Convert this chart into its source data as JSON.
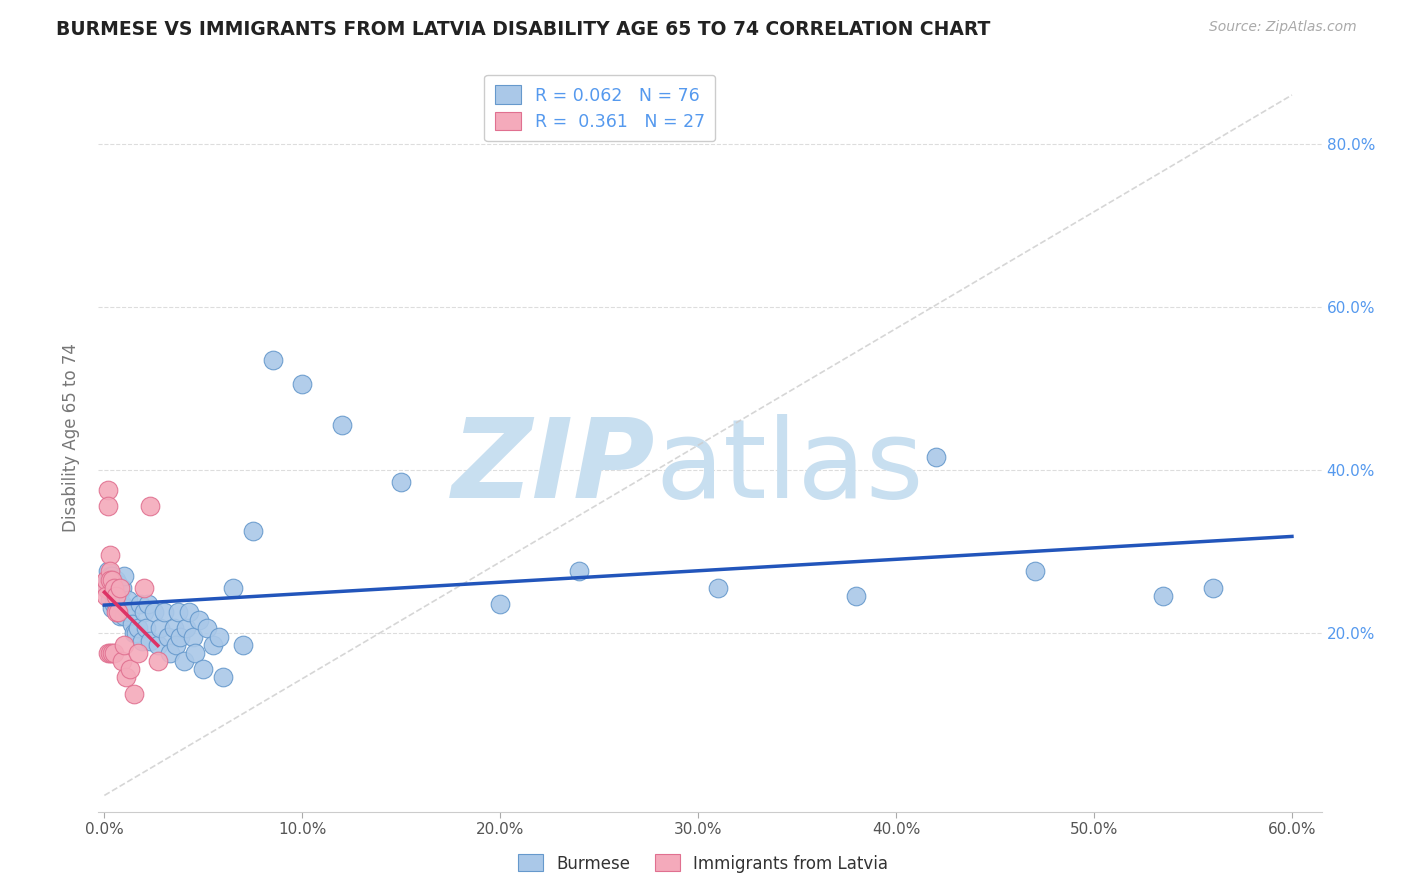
{
  "title": "BURMESE VS IMMIGRANTS FROM LATVIA DISABILITY AGE 65 TO 74 CORRELATION CHART",
  "source": "Source: ZipAtlas.com",
  "ylabel": "Disability Age 65 to 74",
  "legend_label1": "Burmese",
  "legend_label2": "Immigrants from Latvia",
  "R1": 0.062,
  "N1": 76,
  "R2": 0.361,
  "N2": 27,
  "xlim": [
    -0.003,
    0.615
  ],
  "ylim": [
    -0.02,
    0.9
  ],
  "xticks": [
    0.0,
    0.1,
    0.2,
    0.3,
    0.4,
    0.5,
    0.6
  ],
  "yticks": [
    0.2,
    0.4,
    0.6,
    0.8
  ],
  "color_blue_fill": "#aac8e8",
  "color_pink_fill": "#f4aabb",
  "color_blue_edge": "#6699cc",
  "color_pink_edge": "#e07090",
  "color_blue_line": "#2255bb",
  "color_pink_line": "#dd3366",
  "color_diag": "#cccccc",
  "color_grid": "#dddddd",
  "color_ytick_right": "#5599ee",
  "color_xtick": "#555555",
  "watermark_zip_color": "#c8dff0",
  "watermark_atlas_color": "#c8dff0",
  "background_color": "#ffffff",
  "blue_x": [
    0.001,
    0.002,
    0.002,
    0.003,
    0.003,
    0.003,
    0.003,
    0.004,
    0.004,
    0.004,
    0.005,
    0.005,
    0.005,
    0.005,
    0.006,
    0.006,
    0.006,
    0.006,
    0.007,
    0.007,
    0.007,
    0.008,
    0.008,
    0.009,
    0.009,
    0.01,
    0.01,
    0.011,
    0.012,
    0.013,
    0.014,
    0.015,
    0.016,
    0.017,
    0.018,
    0.019,
    0.02,
    0.021,
    0.022,
    0.023,
    0.025,
    0.027,
    0.028,
    0.03,
    0.032,
    0.033,
    0.035,
    0.036,
    0.037,
    0.038,
    0.04,
    0.041,
    0.043,
    0.045,
    0.046,
    0.048,
    0.05,
    0.052,
    0.055,
    0.058,
    0.06,
    0.065,
    0.07,
    0.075,
    0.085,
    0.1,
    0.12,
    0.15,
    0.2,
    0.24,
    0.31,
    0.38,
    0.42,
    0.47,
    0.535,
    0.56
  ],
  "blue_y": [
    0.255,
    0.265,
    0.275,
    0.27,
    0.26,
    0.25,
    0.24,
    0.27,
    0.25,
    0.23,
    0.265,
    0.255,
    0.245,
    0.235,
    0.265,
    0.255,
    0.245,
    0.235,
    0.26,
    0.24,
    0.23,
    0.25,
    0.22,
    0.255,
    0.235,
    0.27,
    0.22,
    0.23,
    0.24,
    0.225,
    0.21,
    0.2,
    0.2,
    0.205,
    0.235,
    0.19,
    0.225,
    0.205,
    0.235,
    0.19,
    0.225,
    0.185,
    0.205,
    0.225,
    0.195,
    0.175,
    0.205,
    0.185,
    0.225,
    0.195,
    0.165,
    0.205,
    0.225,
    0.195,
    0.175,
    0.215,
    0.155,
    0.205,
    0.185,
    0.195,
    0.145,
    0.255,
    0.185,
    0.325,
    0.535,
    0.505,
    0.455,
    0.385,
    0.235,
    0.275,
    0.255,
    0.245,
    0.415,
    0.275,
    0.245,
    0.255
  ],
  "pink_x": [
    0.001,
    0.001,
    0.001,
    0.002,
    0.002,
    0.002,
    0.003,
    0.003,
    0.003,
    0.003,
    0.004,
    0.004,
    0.005,
    0.005,
    0.006,
    0.006,
    0.007,
    0.008,
    0.009,
    0.01,
    0.011,
    0.013,
    0.015,
    0.017,
    0.02,
    0.023,
    0.027
  ],
  "pink_y": [
    0.255,
    0.265,
    0.245,
    0.375,
    0.355,
    0.175,
    0.295,
    0.275,
    0.265,
    0.175,
    0.265,
    0.175,
    0.255,
    0.175,
    0.245,
    0.225,
    0.225,
    0.255,
    0.165,
    0.185,
    0.145,
    0.155,
    0.125,
    0.175,
    0.255,
    0.355,
    0.165
  ]
}
